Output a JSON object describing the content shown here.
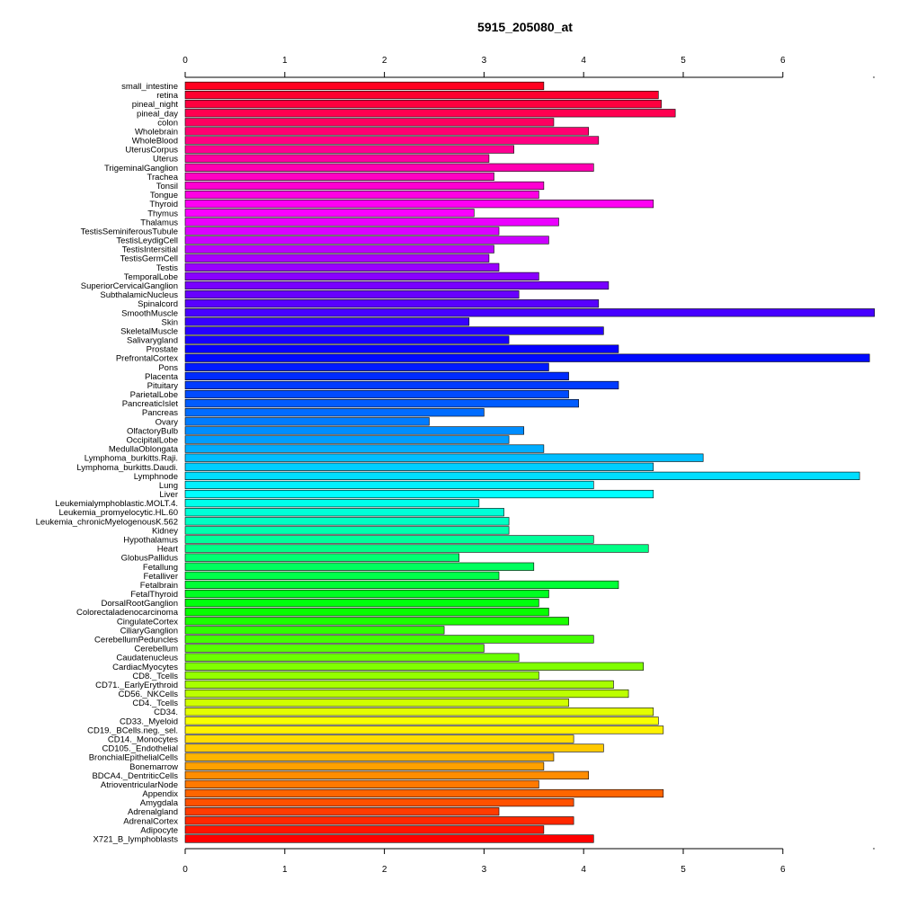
{
  "chart_data": {
    "type": "bar",
    "orientation": "horizontal",
    "title": "5915_205080_at",
    "xlabel": "",
    "ylabel": "",
    "xlim": [
      0,
      6.9
    ],
    "xticks": [
      0,
      1,
      2,
      3,
      4,
      5,
      6
    ],
    "axes": [
      "top",
      "bottom"
    ],
    "grid": false,
    "color_scheme": "rainbow",
    "categories": [
      "small_intestine",
      "retina",
      "pineal_night",
      "pineal_day",
      "colon",
      "Wholebrain",
      "WholeBlood",
      "UterusCorpus",
      "Uterus",
      "TrigeminalGanglion",
      "Trachea",
      "Tonsil",
      "Tongue",
      "Thyroid",
      "Thymus",
      "Thalamus",
      "TestisSeminiferousTubule",
      "TestisLeydigCell",
      "TestisIntersitial",
      "TestisGermCell",
      "Testis",
      "TemporalLobe",
      "SuperiorCervicalGanglion",
      "SubthalamicNucleus",
      "Spinalcord",
      "SmoothMuscle",
      "Skin",
      "SkeletalMuscle",
      "Salivarygland",
      "Prostate",
      "PrefrontalCortex",
      "Pons",
      "Placenta",
      "Pituitary",
      "ParietalLobe",
      "PancreaticIslet",
      "Pancreas",
      "Ovary",
      "OlfactoryBulb",
      "OccipitalLobe",
      "MedullaOblongata",
      "Lymphoma_burkitts.Raji.",
      "Lymphoma_burkitts.Daudi.",
      "Lymphnode",
      "Lung",
      "Liver",
      "Leukemialymphoblastic.MOLT.4.",
      "Leukemia_promyelocytic.HL.60",
      "Leukemia_chronicMyelogenousK.562",
      "Kidney",
      "Hypothalamus",
      "Heart",
      "GlobusPallidus",
      "Fetallung",
      "Fetalliver",
      "Fetalbrain",
      "FetalThyroid",
      "DorsalRootGanglion",
      "Colorectaladenocarcinoma",
      "CingulateCortex",
      "CiliaryGanglion",
      "CerebellumPeduncles",
      "Cerebellum",
      "Caudatenucleus",
      "CardiacMyocytes",
      "CD8._Tcells",
      "CD71._EarlyErythroid",
      "CD56._NKCells",
      "CD4._Tcells",
      "CD34.",
      "CD33._Myeloid",
      "CD19._BCells.neg._sel.",
      "CD14._Monocytes",
      "CD105._Endothelial",
      "BronchialEpithelialCells",
      "Bonemarrow",
      "BDCA4._DentriticCells",
      "AtrioventricularNode",
      "Appendix",
      "Amygdala",
      "Adrenalgland",
      "AdrenalCortex",
      "Adipocyte",
      "X721_B_lymphoblasts"
    ],
    "values": [
      3.6,
      4.75,
      4.78,
      4.92,
      3.7,
      4.05,
      4.15,
      3.3,
      3.05,
      4.1,
      3.1,
      3.6,
      3.55,
      4.7,
      2.9,
      3.75,
      3.15,
      3.65,
      3.1,
      3.05,
      3.15,
      3.55,
      4.25,
      3.35,
      4.15,
      6.92,
      2.85,
      4.2,
      3.25,
      4.35,
      6.87,
      3.65,
      3.85,
      4.35,
      3.85,
      3.95,
      3.0,
      2.45,
      3.4,
      3.25,
      3.6,
      5.2,
      4.7,
      6.77,
      4.1,
      4.7,
      2.95,
      3.2,
      3.25,
      3.25,
      4.1,
      4.65,
      2.75,
      3.5,
      3.15,
      4.35,
      3.65,
      3.55,
      3.65,
      3.85,
      2.6,
      4.1,
      3.0,
      3.35,
      4.6,
      3.55,
      4.3,
      4.45,
      3.85,
      4.7,
      4.75,
      4.8,
      3.9,
      4.2,
      3.7,
      3.6,
      4.05,
      3.55,
      4.8,
      3.9,
      3.15,
      3.9,
      3.6,
      4.1
    ]
  }
}
